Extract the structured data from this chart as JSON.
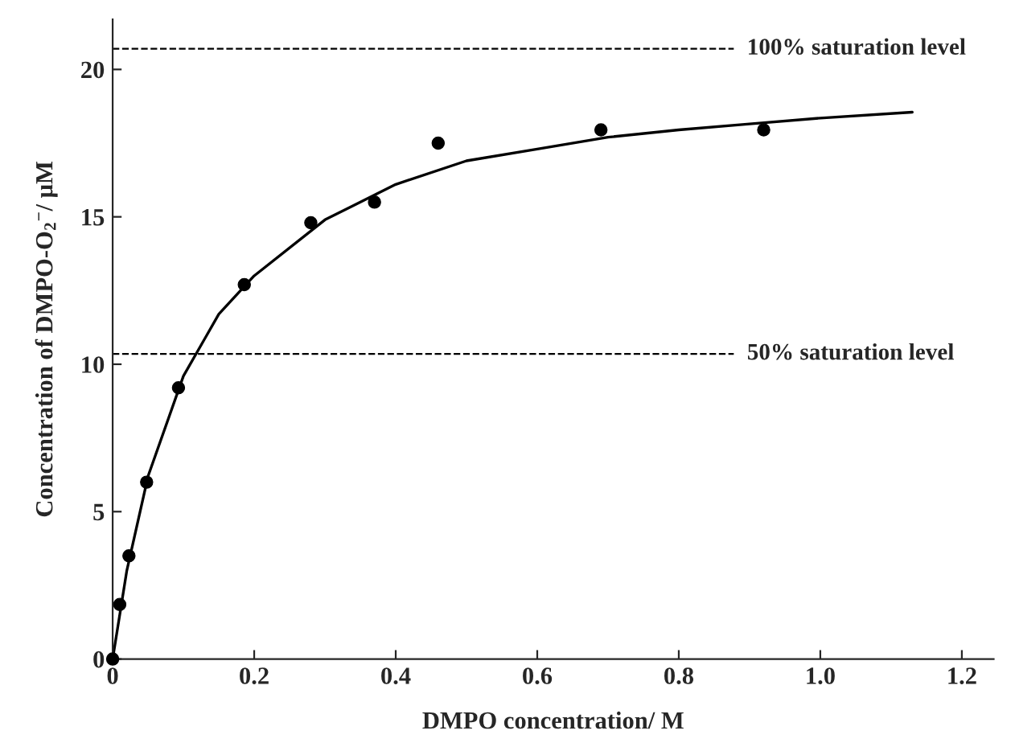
{
  "chart_data": {
    "type": "scatter",
    "xlabel": "DMPO concentration/ M",
    "ylabel": "Concentration of DMPO-O$_{2}$$^{−}$/ μM",
    "xlim": [
      0,
      1.245
    ],
    "ylim": [
      0,
      21.7
    ],
    "xticks": [
      0,
      0.2,
      0.4,
      0.6,
      0.8,
      {
        "value": 1.0,
        "label": "1.0"
      },
      1.2
    ],
    "yticks": [
      0,
      5,
      10,
      15,
      20
    ],
    "grid": false,
    "legend": false,
    "marker": "circle",
    "series": [
      {
        "color": "#000000",
        "x": [
          0,
          0.01,
          0.023,
          0.048,
          0.093,
          0.186,
          0.28,
          0.37,
          0.46,
          0.69,
          0.92
        ],
        "values": [
          0,
          1.85,
          3.5,
          6.0,
          9.2,
          12.7,
          14.8,
          15.5,
          17.5,
          17.95,
          17.95
        ]
      },
      {
        "type": "line",
        "color": "#000000",
        "line_style": "solid",
        "marker": "none",
        "x": [
          0,
          0.02,
          0.05,
          0.1,
          0.15,
          0.2,
          0.3,
          0.4,
          0.5,
          0.6,
          0.7,
          0.8,
          0.9,
          1.0,
          1.13
        ],
        "values": [
          0,
          3.0,
          6.2,
          9.6,
          11.7,
          13.0,
          14.9,
          16.1,
          16.9,
          17.3,
          17.7,
          17.95,
          18.15,
          18.35,
          18.55
        ]
      }
    ],
    "ref_lines": [
      {
        "axis": "y",
        "value": 20.7,
        "label": "100% saturation level",
        "color": "#000000",
        "line_style": "dashed"
      },
      {
        "axis": "y",
        "value": 10.35,
        "label": "50% saturation level",
        "color": "#000000",
        "line_style": "dashed"
      }
    ]
  }
}
